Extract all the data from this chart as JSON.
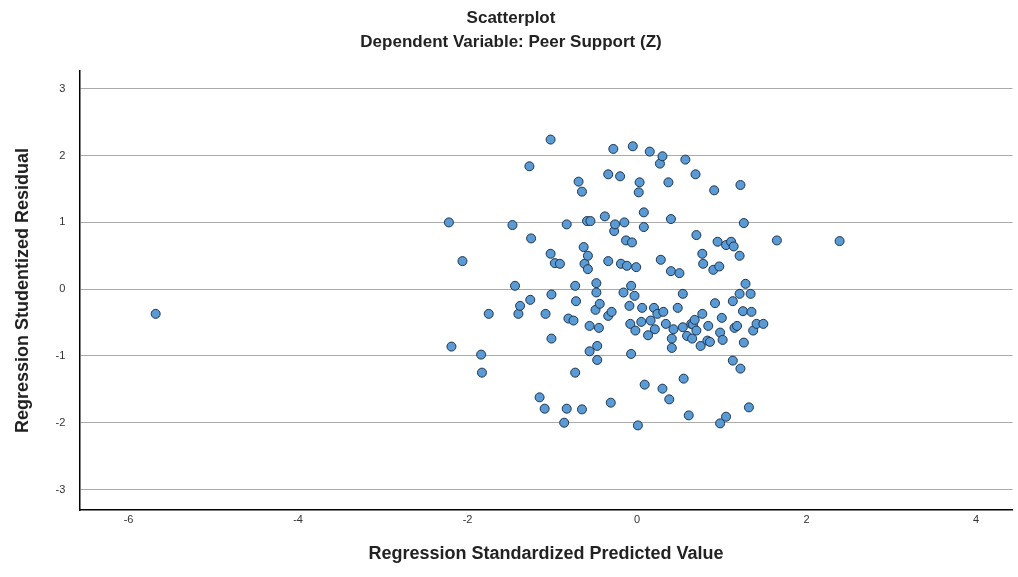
{
  "chart_data": {
    "type": "scatter",
    "title": "Scatterplot",
    "subtitle": "Dependent Variable: Peer Support (Z)",
    "xlabel": "Regression Standardized Predicted Value",
    "ylabel": "Regression Studentized Residual",
    "xlim": [
      -6.58,
      4.43
    ],
    "ylim": [
      -3.31,
      3.27
    ],
    "xticks": [
      -6,
      -4,
      -2,
      0,
      2,
      4
    ],
    "yticks": [
      -3,
      -2,
      -1,
      0,
      1,
      2,
      3
    ],
    "grid": "y",
    "marker": "circle",
    "series": [
      {
        "color": "#5b9bd5",
        "x": [
          -5.68,
          -2.22,
          -2.06,
          -2.19,
          -1.84,
          -1.83,
          -1.75,
          -1.47,
          -1.44,
          -1.4,
          -1.38,
          -1.25,
          -1.26,
          -1.27,
          -1.15,
          -1.09,
          -1.08,
          -1.02,
          -1.02,
          -1.01,
          -1.01,
          -0.97,
          -0.91,
          -0.86,
          -0.83,
          -0.83,
          -0.81,
          -0.75,
          -0.73,
          -0.73,
          -0.72,
          -0.69,
          -0.65,
          -0.65,
          -0.63,
          -0.62,
          -0.59,
          -0.58,
          -0.58,
          -0.56,
          -0.56,
          -0.55,
          -0.49,
          -0.48,
          -0.48,
          -0.47,
          -0.47,
          -0.45,
          -0.44,
          -0.38,
          -0.34,
          -0.31,
          -0.34,
          -0.34,
          -0.3,
          -0.28,
          -0.27,
          -0.26,
          -0.2,
          -0.19,
          -0.16,
          -0.15,
          -0.13,
          -0.12,
          -0.09,
          -0.08,
          -0.07,
          -0.07,
          -0.06,
          -0.05,
          -0.03,
          -0.02,
          -0.01,
          0.01,
          0.02,
          0.03,
          0.05,
          0.06,
          0.08,
          0.08,
          0.09,
          0.13,
          0.15,
          0.16,
          0.2,
          0.21,
          0.24,
          0.27,
          0.28,
          0.3,
          0.3,
          0.31,
          0.34,
          0.37,
          0.38,
          0.4,
          0.4,
          0.41,
          0.41,
          0.43,
          0.48,
          0.5,
          0.54,
          0.54,
          0.55,
          0.57,
          0.59,
          0.61,
          0.64,
          0.65,
          0.66,
          0.69,
          0.68,
          0.7,
          0.7,
          0.75,
          0.77,
          0.78,
          0.77,
          0.83,
          0.84,
          0.86,
          0.91,
          0.9,
          0.92,
          0.95,
          0.97,
          0.98,
          0.98,
          1.0,
          1.01,
          1.05,
          1.05,
          1.11,
          1.13,
          1.13,
          1.14,
          1.15,
          1.18,
          1.21,
          1.21,
          1.22,
          1.22,
          1.25,
          1.26,
          1.26,
          1.28,
          1.32,
          1.34,
          1.35,
          1.37,
          1.41,
          1.49,
          1.65,
          2.39
        ],
        "values": [
          -0.37,
          1.0,
          0.42,
          -0.86,
          -0.98,
          -1.25,
          -0.37,
          0.96,
          0.05,
          -0.37,
          -0.25,
          0.76,
          -0.16,
          1.84,
          -1.62,
          -1.79,
          -0.37,
          2.24,
          0.53,
          -0.08,
          -0.74,
          0.39,
          0.38,
          -2.0,
          -1.79,
          0.97,
          -0.44,
          -0.47,
          -1.25,
          0.05,
          -0.18,
          1.61,
          1.46,
          -1.8,
          0.63,
          0.38,
          1.02,
          0.5,
          0.3,
          -0.55,
          -0.93,
          1.02,
          -0.31,
          0.09,
          -0.05,
          -0.85,
          -1.06,
          -0.58,
          -0.22,
          1.09,
          1.72,
          -1.7,
          -0.4,
          0.42,
          -0.34,
          2.1,
          0.87,
          0.97,
          1.69,
          0.38,
          -0.05,
          1.0,
          0.73,
          0.35,
          -0.25,
          -0.52,
          -0.97,
          0.05,
          0.7,
          2.14,
          -0.1,
          -0.62,
          0.33,
          -2.04,
          1.45,
          1.6,
          -0.49,
          -0.28,
          1.15,
          0.93,
          -1.43,
          -0.69,
          2.06,
          -0.47,
          -0.28,
          -0.6,
          -0.37,
          1.88,
          0.44,
          1.99,
          -1.49,
          -0.34,
          -0.52,
          1.6,
          -1.65,
          1.05,
          0.27,
          -0.88,
          -0.74,
          -0.6,
          -0.28,
          0.24,
          -0.07,
          -0.57,
          -1.34,
          1.94,
          -0.7,
          -1.89,
          -0.52,
          -0.74,
          -0.53,
          1.72,
          -0.46,
          -0.62,
          0.81,
          -0.85,
          0.53,
          0.38,
          -0.37,
          -0.77,
          -0.55,
          -0.79,
          1.48,
          0.29,
          -0.21,
          0.71,
          0.34,
          -0.65,
          -2.01,
          -0.43,
          -0.76,
          -1.91,
          0.66,
          0.71,
          -1.07,
          -0.18,
          0.64,
          -0.58,
          -0.55,
          0.5,
          -0.07,
          -1.19,
          1.56,
          -0.33,
          -0.8,
          0.99,
          0.08,
          -1.77,
          -0.07,
          -0.34,
          -0.62,
          -0.52,
          -0.52,
          0.73,
          0.72
        ]
      }
    ]
  }
}
